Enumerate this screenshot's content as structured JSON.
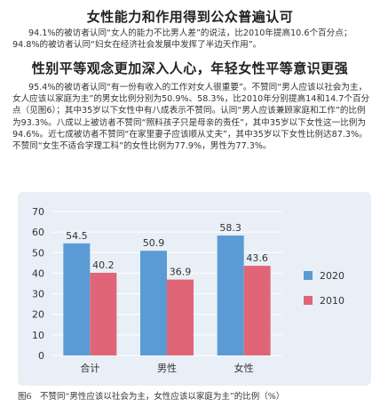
{
  "section1": {
    "title": "女性能力和作用得到公众普遍认可",
    "paragraph": "94.1%的被访者认同“女人的能力不比男人差”的说法，比2010年提高10.6个百分点；94.8%的被访者认同“妇女在经济社会发展中发挥了半边天作用”。"
  },
  "section2": {
    "title": "性别平等观念更加深入人心，年轻女性平等意识更强",
    "paragraph": "95.4%的被访者认同“有一份有收入的工作对女人很重要”。不赞同“男人应该以社会为主，女人应该以家庭为主”的男女比例分别为50.9%、58.3%，比2010年分别提高14和14.7个百分点（见图6）；其中35岁以下女性中有八成表示不赞同。认同“男人应该兼顾家庭和工作”的比例为93.3%。八成以上被访者不赞同“照料孩子只是母亲的责任”，其中35岁以下女性这一比例为94.6%。近七成被访者不赞同“在家里妻子应该顺从丈夫”，其中35岁以下女性比例达87.3%。不赞同“女生不适合学理工科”的女性比例为77.9%，男性为77.3%。"
  },
  "figure": {
    "caption": "图6　不赞同“男性应该以社会为主，女性应该以家庭为主”的比例（%）"
  },
  "chart_data": {
    "type": "bar",
    "categories": [
      "合计",
      "男性",
      "女性"
    ],
    "series": [
      {
        "name": "2020",
        "values": [
          54.5,
          50.9,
          58.3
        ],
        "color": "#5b9bd5"
      },
      {
        "name": "2010",
        "values": [
          40.2,
          36.9,
          43.6
        ],
        "color": "#e06677"
      }
    ],
    "ylim": [
      0,
      70
    ],
    "yticks": [
      0,
      10,
      20,
      30,
      40,
      50,
      60,
      70
    ],
    "grid": true,
    "legend": "right"
  }
}
